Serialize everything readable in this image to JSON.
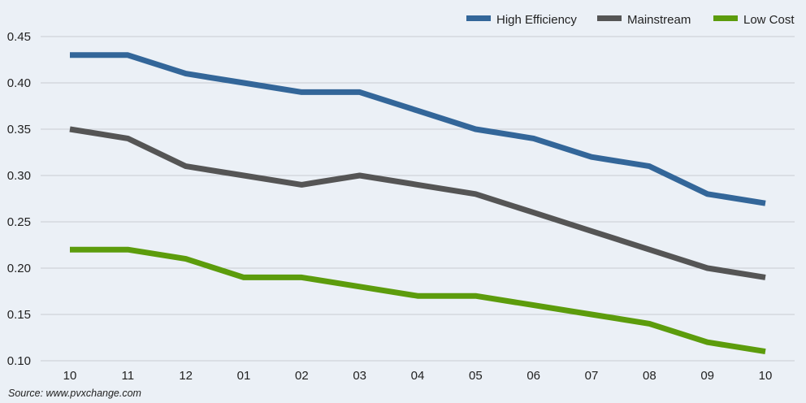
{
  "chart_data": {
    "type": "line",
    "title": "",
    "xlabel": "",
    "ylabel": "",
    "categories": [
      "10",
      "11",
      "12",
      "01",
      "02",
      "03",
      "04",
      "05",
      "06",
      "07",
      "08",
      "09",
      "10"
    ],
    "ylim": [
      0.1,
      0.45
    ],
    "yticks": [
      "0.10",
      "0.15",
      "0.20",
      "0.25",
      "0.30",
      "0.35",
      "0.40",
      "0.45"
    ],
    "grid": true,
    "legend_position": "top-right",
    "series": [
      {
        "name": "High Efficiency",
        "color": "#336699",
        "values": [
          0.43,
          0.43,
          0.41,
          0.4,
          0.39,
          0.39,
          0.37,
          0.35,
          0.34,
          0.32,
          0.31,
          0.28,
          0.27
        ]
      },
      {
        "name": "Mainstream",
        "color": "#555555",
        "values": [
          0.35,
          0.34,
          0.31,
          0.3,
          0.29,
          0.3,
          0.29,
          0.28,
          0.26,
          0.24,
          0.22,
          0.2,
          0.19
        ]
      },
      {
        "name": "Low Cost",
        "color": "#5c9c0c",
        "values": [
          0.22,
          0.22,
          0.21,
          0.19,
          0.19,
          0.18,
          0.17,
          0.17,
          0.16,
          0.15,
          0.14,
          0.12,
          0.11
        ]
      }
    ]
  },
  "source": "Source: www.pvxchange.com"
}
